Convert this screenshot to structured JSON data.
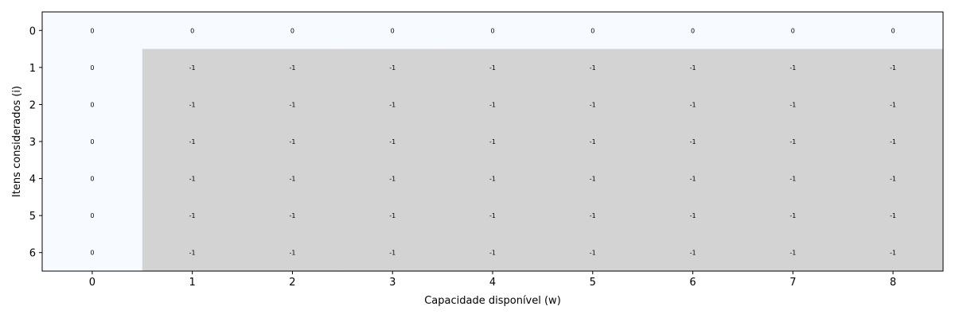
{
  "chart_data": {
    "type": "heatmap",
    "title": "",
    "xlabel": "Capacidade disponível (w)",
    "ylabel": "Itens considerados (i)",
    "x_categories": [
      0,
      1,
      2,
      3,
      4,
      5,
      6,
      7,
      8
    ],
    "y_categories": [
      0,
      1,
      2,
      3,
      4,
      5,
      6
    ],
    "values": [
      [
        0,
        0,
        0,
        0,
        0,
        0,
        0,
        0,
        0
      ],
      [
        0,
        -1,
        -1,
        -1,
        -1,
        -1,
        -1,
        -1,
        -1
      ],
      [
        0,
        -1,
        -1,
        -1,
        -1,
        -1,
        -1,
        -1,
        -1
      ],
      [
        0,
        -1,
        -1,
        -1,
        -1,
        -1,
        -1,
        -1,
        -1
      ],
      [
        0,
        -1,
        -1,
        -1,
        -1,
        -1,
        -1,
        -1,
        -1
      ],
      [
        0,
        -1,
        -1,
        -1,
        -1,
        -1,
        -1,
        -1,
        -1
      ],
      [
        0,
        -1,
        -1,
        -1,
        -1,
        -1,
        -1,
        -1,
        -1
      ]
    ],
    "colors": {
      "computed": "#f7fbff",
      "uncomputed": "#d3d3d3",
      "frame": "#000000"
    },
    "grid": false,
    "legend": "none"
  }
}
